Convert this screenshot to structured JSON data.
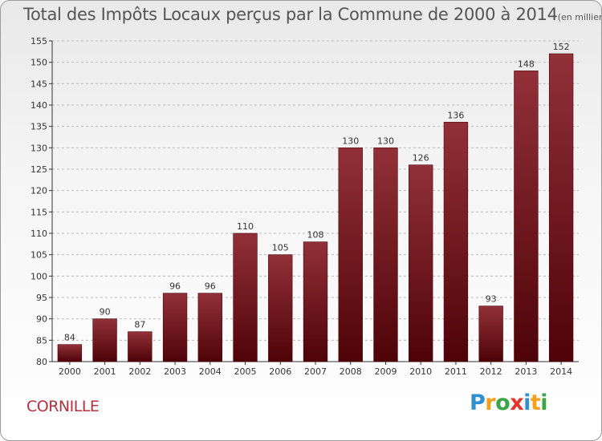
{
  "title": "Total des Impôts Locaux perçus par la Commune de 2000 à 2014",
  "subtitle": "(en milliers d'€)",
  "commune": "CORNILLE",
  "logo": {
    "letters": [
      "P",
      "r",
      "o",
      "x",
      "i",
      "t",
      "i"
    ],
    "colors": [
      "#2f8fd1",
      "#f2a01c",
      "#3aa547",
      "#e8322c",
      "#2f8fd1",
      "#f2a01c",
      "#3aa547"
    ]
  },
  "chart_data": {
    "type": "bar",
    "title": "Total des Impôts Locaux perçus par la Commune de 2000 à 2014",
    "subtitle": "(en milliers d'€)",
    "xlabel": "",
    "ylabel": "",
    "categories": [
      "2000",
      "2001",
      "2002",
      "2003",
      "2004",
      "2005",
      "2006",
      "2007",
      "2008",
      "2009",
      "2010",
      "2011",
      "2012",
      "2013",
      "2014"
    ],
    "values": [
      84,
      90,
      87,
      96,
      96,
      110,
      105,
      108,
      130,
      130,
      126,
      136,
      93,
      148,
      152
    ],
    "ylim": [
      80,
      155
    ],
    "yticks": [
      80,
      85,
      90,
      95,
      100,
      105,
      110,
      115,
      120,
      125,
      130,
      135,
      140,
      145,
      150,
      155
    ],
    "grid": true,
    "colors": {
      "bar": "#7a1a1f",
      "bar_light": "#923038",
      "bar_dark": "#4e0308"
    }
  }
}
